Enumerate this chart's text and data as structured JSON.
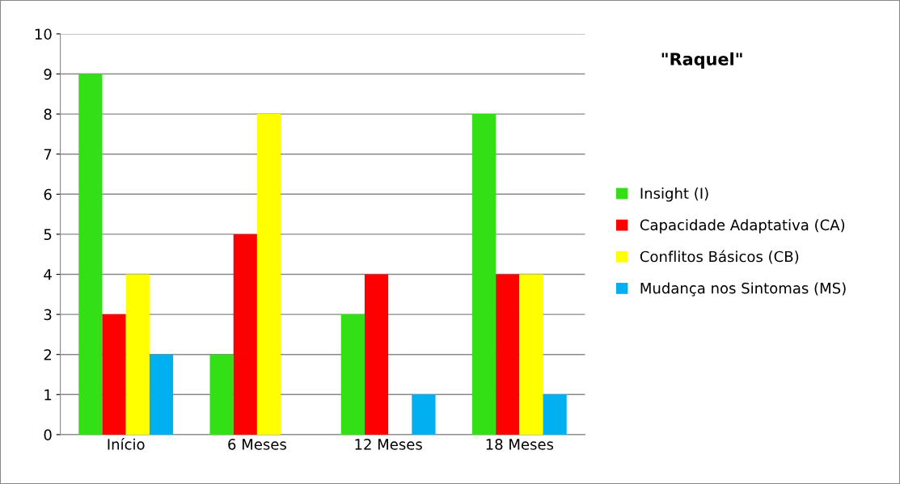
{
  "chart_data": {
    "type": "bar",
    "title": "\"Raquel\"",
    "categories": [
      "Início",
      "6 Meses",
      "12 Meses",
      "18 Meses"
    ],
    "series": [
      {
        "name": "Insight (I)",
        "color": "#33e016",
        "values": [
          9,
          2,
          3,
          8
        ]
      },
      {
        "name": "Capacidade Adaptativa (CA)",
        "color": "#ff0000",
        "values": [
          3,
          5,
          4,
          4
        ]
      },
      {
        "name": "Conflitos Básicos (CB)",
        "color": "#ffff00",
        "values": [
          4,
          8,
          0,
          4
        ]
      },
      {
        "name": "Mudança nos Sintomas (MS)",
        "color": "#00b0f0",
        "values": [
          2,
          0,
          1,
          1
        ]
      }
    ],
    "ylim": [
      0,
      10
    ],
    "yticks": [
      0,
      1,
      2,
      3,
      4,
      5,
      6,
      7,
      8,
      9,
      10
    ],
    "grid": "y",
    "legend": "right"
  }
}
